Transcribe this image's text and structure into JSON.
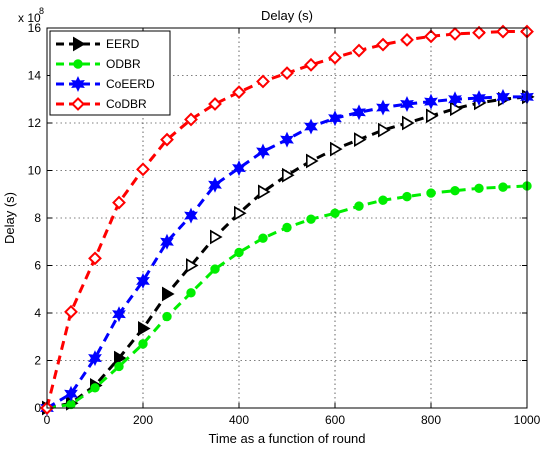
{
  "chart_data": {
    "type": "line",
    "title": "Delay (s)",
    "xlabel": "Time as a function of round",
    "ylabel": "Delay (s)",
    "y_multiplier_label": "x 10",
    "y_multiplier_exponent": "8",
    "xlim": [
      0,
      1000
    ],
    "ylim": [
      0,
      16
    ],
    "xticks": [
      0,
      200,
      400,
      600,
      800,
      1000
    ],
    "yticks": [
      0,
      2,
      4,
      6,
      8,
      10,
      12,
      14,
      16
    ],
    "grid": true,
    "legend_position": "top-left",
    "x": [
      0,
      50,
      100,
      150,
      200,
      250,
      300,
      350,
      400,
      450,
      500,
      550,
      600,
      650,
      700,
      750,
      800,
      850,
      900,
      950,
      1000
    ],
    "series": [
      {
        "name": "EERD",
        "color": "#000000",
        "marker": "triangle-right",
        "values": [
          0,
          0.2,
          0.95,
          2.1,
          3.35,
          4.8,
          6.0,
          7.2,
          8.2,
          9.1,
          9.8,
          10.4,
          10.9,
          11.3,
          11.7,
          12.0,
          12.3,
          12.6,
          12.85,
          13.0,
          13.1
        ]
      },
      {
        "name": "ODBR",
        "color": "#00ee00",
        "marker": "circle",
        "values": [
          0,
          0.15,
          0.85,
          1.75,
          2.7,
          3.85,
          4.85,
          5.85,
          6.55,
          7.15,
          7.6,
          7.95,
          8.2,
          8.5,
          8.75,
          8.9,
          9.05,
          9.15,
          9.25,
          9.3,
          9.35
        ]
      },
      {
        "name": "CoEERD",
        "color": "#0000ff",
        "marker": "hexagram",
        "values": [
          0,
          0.6,
          2.1,
          3.95,
          5.35,
          7.0,
          8.1,
          9.4,
          10.1,
          10.8,
          11.3,
          11.85,
          12.2,
          12.45,
          12.65,
          12.8,
          12.9,
          13.0,
          13.05,
          13.1,
          13.1
        ]
      },
      {
        "name": "CoDBR",
        "color": "#ff0000",
        "marker": "diamond",
        "values": [
          0,
          4.05,
          6.3,
          8.65,
          10.05,
          11.3,
          12.15,
          12.8,
          13.3,
          13.75,
          14.1,
          14.45,
          14.75,
          15.05,
          15.3,
          15.5,
          15.65,
          15.75,
          15.8,
          15.85,
          15.85
        ]
      }
    ]
  }
}
